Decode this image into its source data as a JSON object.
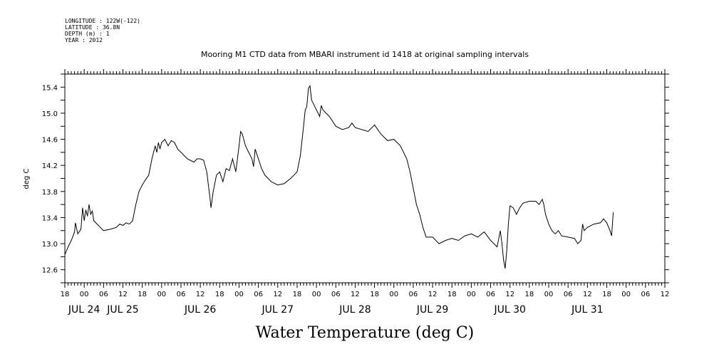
{
  "metadata": {
    "longitude": "LONGITUDE : 122W(-122)",
    "latitude": "LATITUDE : 36.8N",
    "depth": "DEPTH (m) : 1",
    "year": "YEAR : 2012"
  },
  "chart_data": {
    "type": "line",
    "title": "Mooring M1 CTD data from MBARI instrument id 1418 at original sampling intervals",
    "ylabel": "deg C",
    "xlabel": "Water Temperature (deg C)",
    "ylim": [
      12.4,
      15.6
    ],
    "yticks": [
      "12.6",
      "13.0",
      "13.4",
      "13.8",
      "14.2",
      "14.6",
      "15.0",
      "15.4"
    ],
    "x_unit": "hours since JUL 24 00:00, 2012",
    "xlim": [
      -6,
      180
    ],
    "hour_ticks": [
      {
        "x": -6,
        "label": "18"
      },
      {
        "x": 0,
        "label": "00"
      },
      {
        "x": 6,
        "label": "06"
      },
      {
        "x": 12,
        "label": "12"
      },
      {
        "x": 18,
        "label": "18"
      },
      {
        "x": 24,
        "label": "00"
      },
      {
        "x": 30,
        "label": "06"
      },
      {
        "x": 36,
        "label": "12"
      },
      {
        "x": 42,
        "label": "18"
      },
      {
        "x": 48,
        "label": "00"
      },
      {
        "x": 54,
        "label": "06"
      },
      {
        "x": 60,
        "label": "12"
      },
      {
        "x": 66,
        "label": "18"
      },
      {
        "x": 72,
        "label": "00"
      },
      {
        "x": 78,
        "label": "06"
      },
      {
        "x": 84,
        "label": "12"
      },
      {
        "x": 90,
        "label": "18"
      },
      {
        "x": 96,
        "label": "00"
      },
      {
        "x": 102,
        "label": "06"
      },
      {
        "x": 108,
        "label": "12"
      },
      {
        "x": 114,
        "label": "18"
      },
      {
        "x": 120,
        "label": "00"
      },
      {
        "x": 126,
        "label": "06"
      },
      {
        "x": 132,
        "label": "12"
      },
      {
        "x": 138,
        "label": "18"
      },
      {
        "x": 144,
        "label": "00"
      },
      {
        "x": 150,
        "label": "06"
      },
      {
        "x": 156,
        "label": "12"
      },
      {
        "x": 162,
        "label": "18"
      },
      {
        "x": 168,
        "label": "00"
      },
      {
        "x": 174,
        "label": "06"
      },
      {
        "x": 180,
        "label": "12"
      }
    ],
    "day_labels": [
      {
        "x": 0,
        "label": "JUL 24"
      },
      {
        "x": 12,
        "label": "JUL 25"
      },
      {
        "x": 36,
        "label": "JUL 26"
      },
      {
        "x": 60,
        "label": "JUL 27"
      },
      {
        "x": 84,
        "label": "JUL 28"
      },
      {
        "x": 108,
        "label": "JUL 29"
      },
      {
        "x": 132,
        "label": "JUL 30"
      },
      {
        "x": 156,
        "label": "JUL 31"
      }
    ],
    "series": [
      {
        "values": [
          [
            -6.0,
            12.83
          ],
          [
            -5.0,
            12.95
          ],
          [
            -4.0,
            13.05
          ],
          [
            -3.0,
            13.18
          ],
          [
            -2.7,
            13.32
          ],
          [
            -2.0,
            13.15
          ],
          [
            -1.0,
            13.22
          ],
          [
            -0.5,
            13.55
          ],
          [
            0.0,
            13.35
          ],
          [
            0.5,
            13.52
          ],
          [
            1.0,
            13.42
          ],
          [
            1.5,
            13.6
          ],
          [
            2.0,
            13.45
          ],
          [
            2.5,
            13.5
          ],
          [
            3.0,
            13.35
          ],
          [
            4.0,
            13.3
          ],
          [
            5.0,
            13.25
          ],
          [
            6.0,
            13.2
          ],
          [
            8.0,
            13.22
          ],
          [
            10.0,
            13.25
          ],
          [
            11.0,
            13.3
          ],
          [
            12.0,
            13.28
          ],
          [
            13.0,
            13.32
          ],
          [
            14.0,
            13.3
          ],
          [
            15.0,
            13.35
          ],
          [
            16.0,
            13.6
          ],
          [
            17.0,
            13.8
          ],
          [
            18.0,
            13.9
          ],
          [
            19.0,
            13.98
          ],
          [
            20.0,
            14.05
          ],
          [
            21.0,
            14.3
          ],
          [
            22.0,
            14.5
          ],
          [
            22.5,
            14.4
          ],
          [
            23.0,
            14.55
          ],
          [
            23.5,
            14.45
          ],
          [
            24.0,
            14.55
          ],
          [
            25.0,
            14.6
          ],
          [
            26.0,
            14.5
          ],
          [
            27.0,
            14.58
          ],
          [
            28.0,
            14.55
          ],
          [
            29.0,
            14.45
          ],
          [
            30.0,
            14.4
          ],
          [
            32.0,
            14.3
          ],
          [
            34.0,
            14.25
          ],
          [
            35.0,
            14.3
          ],
          [
            36.0,
            14.3
          ],
          [
            37.0,
            14.28
          ],
          [
            38.0,
            14.1
          ],
          [
            38.5,
            13.9
          ],
          [
            39.0,
            13.7
          ],
          [
            39.3,
            13.55
          ],
          [
            40.0,
            13.8
          ],
          [
            41.0,
            14.05
          ],
          [
            42.0,
            14.1
          ],
          [
            43.0,
            13.95
          ],
          [
            44.0,
            14.15
          ],
          [
            45.0,
            14.12
          ],
          [
            46.0,
            14.3
          ],
          [
            47.0,
            14.1
          ],
          [
            48.0,
            14.5
          ],
          [
            48.5,
            14.72
          ],
          [
            49.0,
            14.68
          ],
          [
            50.0,
            14.5
          ],
          [
            51.0,
            14.4
          ],
          [
            52.0,
            14.3
          ],
          [
            52.5,
            14.18
          ],
          [
            53.0,
            14.45
          ],
          [
            54.0,
            14.3
          ],
          [
            55.0,
            14.15
          ],
          [
            56.0,
            14.05
          ],
          [
            58.0,
            13.95
          ],
          [
            60.0,
            13.9
          ],
          [
            62.0,
            13.92
          ],
          [
            64.0,
            14.0
          ],
          [
            66.0,
            14.1
          ],
          [
            67.0,
            14.35
          ],
          [
            68.0,
            14.8
          ],
          [
            68.5,
            15.05
          ],
          [
            69.0,
            15.1
          ],
          [
            69.5,
            15.38
          ],
          [
            70.0,
            15.42
          ],
          [
            70.5,
            15.2
          ],
          [
            71.0,
            15.15
          ],
          [
            71.5,
            15.1
          ],
          [
            72.0,
            15.05
          ],
          [
            72.5,
            15.0
          ],
          [
            73.0,
            14.95
          ],
          [
            73.5,
            15.12
          ],
          [
            74.0,
            15.05
          ],
          [
            76.0,
            14.95
          ],
          [
            78.0,
            14.8
          ],
          [
            80.0,
            14.75
          ],
          [
            82.0,
            14.78
          ],
          [
            83.0,
            14.85
          ],
          [
            84.0,
            14.78
          ],
          [
            86.0,
            14.75
          ],
          [
            88.0,
            14.72
          ],
          [
            90.0,
            14.82
          ],
          [
            92.0,
            14.68
          ],
          [
            94.0,
            14.58
          ],
          [
            96.0,
            14.6
          ],
          [
            98.0,
            14.5
          ],
          [
            100.0,
            14.3
          ],
          [
            101.0,
            14.1
          ],
          [
            102.0,
            13.85
          ],
          [
            103.0,
            13.6
          ],
          [
            104.0,
            13.45
          ],
          [
            105.0,
            13.25
          ],
          [
            106.0,
            13.1
          ],
          [
            108.0,
            13.1
          ],
          [
            110.0,
            13.0
          ],
          [
            112.0,
            13.05
          ],
          [
            114.0,
            13.08
          ],
          [
            116.0,
            13.05
          ],
          [
            118.0,
            13.12
          ],
          [
            120.0,
            13.15
          ],
          [
            122.0,
            13.1
          ],
          [
            124.0,
            13.18
          ],
          [
            126.0,
            13.05
          ],
          [
            128.0,
            12.95
          ],
          [
            129.0,
            13.2
          ],
          [
            129.5,
            13.0
          ],
          [
            130.0,
            12.75
          ],
          [
            130.5,
            12.62
          ],
          [
            131.0,
            12.9
          ],
          [
            131.5,
            13.3
          ],
          [
            132.0,
            13.58
          ],
          [
            133.0,
            13.55
          ],
          [
            134.0,
            13.45
          ],
          [
            135.0,
            13.55
          ],
          [
            136.0,
            13.62
          ],
          [
            138.0,
            13.65
          ],
          [
            140.0,
            13.65
          ],
          [
            141.0,
            13.6
          ],
          [
            142.0,
            13.68
          ],
          [
            142.5,
            13.6
          ],
          [
            143.0,
            13.45
          ],
          [
            144.0,
            13.3
          ],
          [
            145.0,
            13.2
          ],
          [
            146.0,
            13.15
          ],
          [
            147.0,
            13.2
          ],
          [
            148.0,
            13.12
          ],
          [
            150.0,
            13.1
          ],
          [
            152.0,
            13.08
          ],
          [
            153.0,
            13.0
          ],
          [
            154.0,
            13.05
          ],
          [
            154.5,
            13.3
          ],
          [
            155.0,
            13.2
          ],
          [
            156.0,
            13.25
          ],
          [
            158.0,
            13.3
          ],
          [
            160.0,
            13.32
          ],
          [
            161.0,
            13.38
          ],
          [
            162.0,
            13.32
          ],
          [
            163.0,
            13.2
          ],
          [
            163.5,
            13.12
          ],
          [
            164.0,
            13.48
          ]
        ]
      }
    ]
  }
}
